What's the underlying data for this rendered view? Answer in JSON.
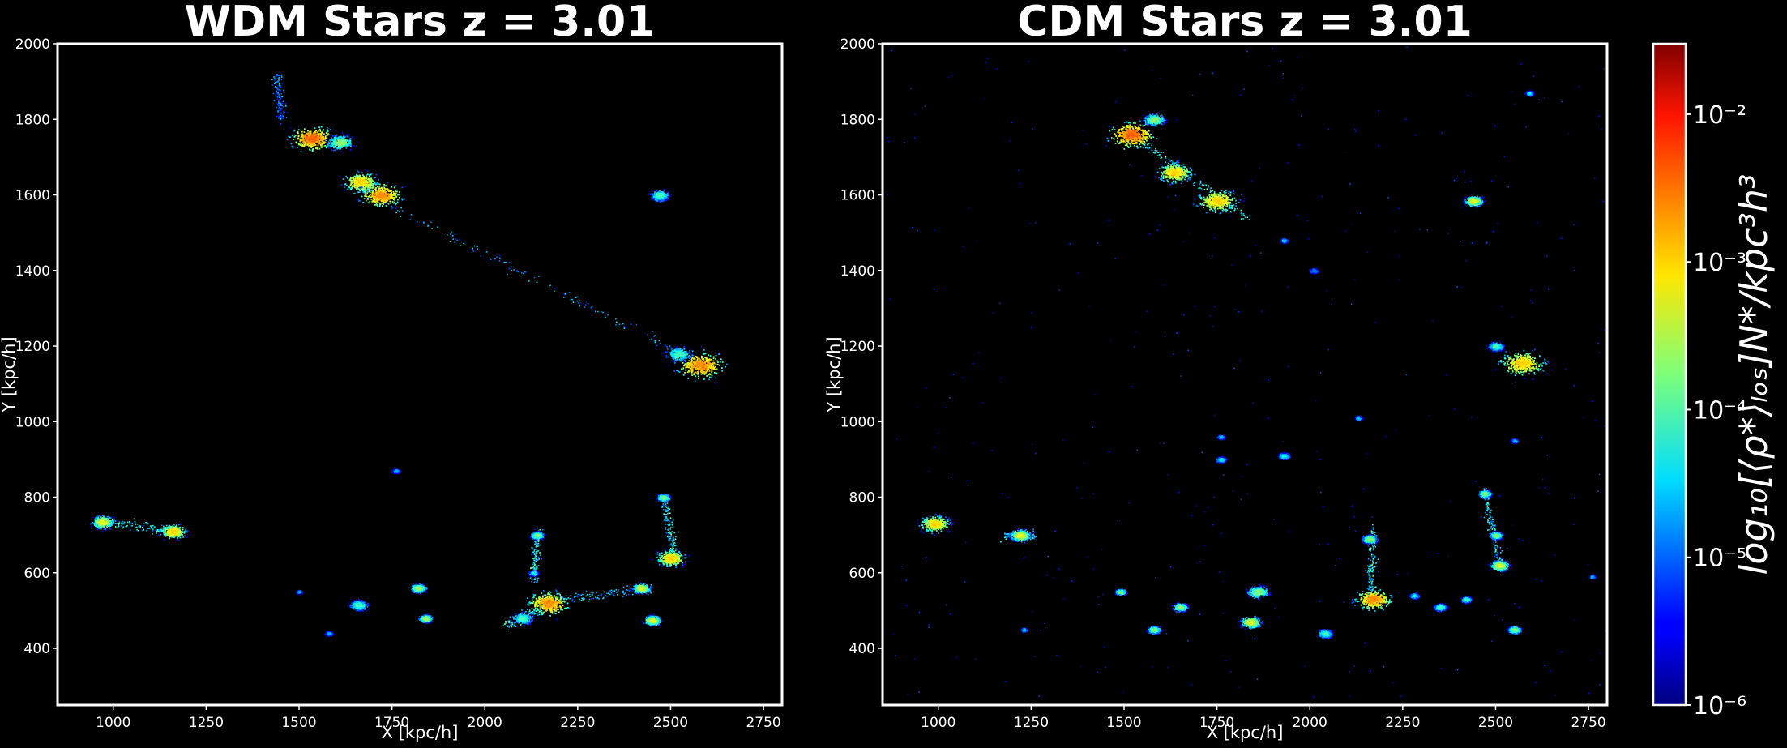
{
  "chart_data": [
    {
      "type": "heatmap",
      "title": "WDM Stars z = 3.01",
      "xlabel": "X [kpc/h]",
      "ylabel": "Y [kpc/h]",
      "xlim": [
        850,
        2800
      ],
      "ylim": [
        250,
        2000
      ],
      "xticks": [
        "1000",
        "1250",
        "1500",
        "1750",
        "2000",
        "2250",
        "2500",
        "2750"
      ],
      "yticks": [
        "400",
        "600",
        "800",
        "1000",
        "1200",
        "1400",
        "1600",
        "1800",
        "2000"
      ],
      "colormap": "jet",
      "background": "#000000",
      "blobs": [
        {
          "x": 1535,
          "y": 1750,
          "peak": 0.003,
          "spread": 35
        },
        {
          "x": 1610,
          "y": 1740,
          "peak": 0.0002,
          "spread": 25
        },
        {
          "x": 1665,
          "y": 1635,
          "peak": 0.001,
          "spread": 30
        },
        {
          "x": 1720,
          "y": 1600,
          "peak": 0.002,
          "spread": 35
        },
        {
          "x": 2470,
          "y": 1595,
          "peak": 0.0003,
          "spread": 12
        },
        {
          "x": 2580,
          "y": 1150,
          "peak": 0.002,
          "spread": 40
        },
        {
          "x": 2520,
          "y": 1180,
          "peak": 0.0001,
          "spread": 25
        },
        {
          "x": 970,
          "y": 735,
          "peak": 0.0005,
          "spread": 20
        },
        {
          "x": 1160,
          "y": 710,
          "peak": 0.001,
          "spread": 22
        },
        {
          "x": 1760,
          "y": 870,
          "peak": 3e-05,
          "spread": 8
        },
        {
          "x": 2140,
          "y": 700,
          "peak": 0.0002,
          "spread": 12
        },
        {
          "x": 2130,
          "y": 600,
          "peak": 5e-05,
          "spread": 10
        },
        {
          "x": 2170,
          "y": 520,
          "peak": 0.002,
          "spread": 35
        },
        {
          "x": 2100,
          "y": 480,
          "peak": 0.0001,
          "spread": 20
        },
        {
          "x": 2480,
          "y": 800,
          "peak": 0.0002,
          "spread": 12
        },
        {
          "x": 2500,
          "y": 640,
          "peak": 0.001,
          "spread": 25
        },
        {
          "x": 2420,
          "y": 560,
          "peak": 0.0005,
          "spread": 15
        },
        {
          "x": 2450,
          "y": 475,
          "peak": 0.0005,
          "spread": 15
        },
        {
          "x": 1820,
          "y": 560,
          "peak": 0.0003,
          "spread": 14
        },
        {
          "x": 1840,
          "y": 480,
          "peak": 0.0003,
          "spread": 12
        },
        {
          "x": 1660,
          "y": 515,
          "peak": 0.0001,
          "spread": 18
        },
        {
          "x": 1580,
          "y": 440,
          "peak": 3e-05,
          "spread": 8
        },
        {
          "x": 1500,
          "y": 550,
          "peak": 3e-05,
          "spread": 6
        },
        {
          "x": 2470,
          "y": 1600,
          "peak": 0.0001,
          "spread": 18
        }
      ],
      "filaments": [
        {
          "from": [
            1650,
            1620
          ],
          "to": [
            2550,
            1170
          ],
          "peak": 2e-05
        },
        {
          "from": [
            960,
            740
          ],
          "to": [
            1180,
            705
          ],
          "peak": 4e-05
        },
        {
          "from": [
            2150,
            525
          ],
          "to": [
            2450,
            560
          ],
          "peak": 2e-05
        },
        {
          "from": [
            2480,
            800
          ],
          "to": [
            2510,
            640
          ],
          "peak": 4e-05
        },
        {
          "from": [
            1440,
            1920
          ],
          "to": [
            1450,
            1800
          ],
          "peak": 1e-05
        },
        {
          "from": [
            2050,
            460
          ],
          "to": [
            2170,
            520
          ],
          "peak": 4e-05
        },
        {
          "from": [
            2140,
            720
          ],
          "to": [
            2130,
            580
          ],
          "peak": 4e-05
        }
      ]
    },
    {
      "type": "heatmap",
      "title": "CDM Stars z = 3.01",
      "xlabel": "X [kpc/h]",
      "ylabel": "Y [kpc/h]",
      "xlim": [
        850,
        2800
      ],
      "ylim": [
        250,
        2000
      ],
      "xticks": [
        "1000",
        "1250",
        "1500",
        "1750",
        "2000",
        "2250",
        "2500",
        "2750"
      ],
      "yticks": [
        "400",
        "600",
        "800",
        "1000",
        "1200",
        "1400",
        "1600",
        "1800",
        "2000"
      ],
      "colormap": "jet",
      "background": "#000000",
      "blobs": [
        {
          "x": 1520,
          "y": 1760,
          "peak": 0.003,
          "spread": 38
        },
        {
          "x": 1580,
          "y": 1800,
          "peak": 0.0002,
          "spread": 20
        },
        {
          "x": 1635,
          "y": 1660,
          "peak": 0.001,
          "spread": 30
        },
        {
          "x": 1750,
          "y": 1585,
          "peak": 0.001,
          "spread": 35
        },
        {
          "x": 2440,
          "y": 1585,
          "peak": 0.0005,
          "spread": 16
        },
        {
          "x": 2590,
          "y": 1870,
          "peak": 5e-05,
          "spread": 8
        },
        {
          "x": 2570,
          "y": 1155,
          "peak": 0.001,
          "spread": 40
        },
        {
          "x": 2500,
          "y": 1200,
          "peak": 0.0001,
          "spread": 15
        },
        {
          "x": 990,
          "y": 730,
          "peak": 0.001,
          "spread": 25
        },
        {
          "x": 1220,
          "y": 700,
          "peak": 0.0005,
          "spread": 18
        },
        {
          "x": 1760,
          "y": 960,
          "peak": 3e-05,
          "spread": 8
        },
        {
          "x": 1760,
          "y": 900,
          "peak": 5e-05,
          "spread": 10
        },
        {
          "x": 1930,
          "y": 910,
          "peak": 5e-05,
          "spread": 12
        },
        {
          "x": 2160,
          "y": 690,
          "peak": 0.0002,
          "spread": 14
        },
        {
          "x": 2170,
          "y": 530,
          "peak": 0.002,
          "spread": 30
        },
        {
          "x": 2040,
          "y": 440,
          "peak": 0.0001,
          "spread": 14
        },
        {
          "x": 2470,
          "y": 810,
          "peak": 0.0002,
          "spread": 12
        },
        {
          "x": 2500,
          "y": 700,
          "peak": 0.0002,
          "spread": 12
        },
        {
          "x": 2510,
          "y": 620,
          "peak": 0.0005,
          "spread": 16
        },
        {
          "x": 2550,
          "y": 950,
          "peak": 3e-05,
          "spread": 8
        },
        {
          "x": 2550,
          "y": 450,
          "peak": 0.0002,
          "spread": 12
        },
        {
          "x": 1840,
          "y": 470,
          "peak": 0.0005,
          "spread": 18
        },
        {
          "x": 1860,
          "y": 550,
          "peak": 0.0002,
          "spread": 20
        },
        {
          "x": 1650,
          "y": 510,
          "peak": 0.0002,
          "spread": 14
        },
        {
          "x": 1580,
          "y": 450,
          "peak": 0.0002,
          "spread": 12
        },
        {
          "x": 1490,
          "y": 550,
          "peak": 0.0002,
          "spread": 10
        },
        {
          "x": 2350,
          "y": 510,
          "peak": 0.0001,
          "spread": 12
        },
        {
          "x": 2420,
          "y": 530,
          "peak": 0.0001,
          "spread": 10
        },
        {
          "x": 2280,
          "y": 540,
          "peak": 5e-05,
          "spread": 10
        },
        {
          "x": 1230,
          "y": 450,
          "peak": 5e-05,
          "spread": 6
        },
        {
          "x": 2130,
          "y": 1010,
          "peak": 3e-05,
          "spread": 8
        },
        {
          "x": 2760,
          "y": 590,
          "peak": 3e-05,
          "spread": 6
        },
        {
          "x": 2010,
          "y": 1400,
          "peak": 2e-05,
          "spread": 10
        },
        {
          "x": 1930,
          "y": 1480,
          "peak": 3e-05,
          "spread": 8
        }
      ],
      "filaments": [
        {
          "from": [
            1520,
            1760
          ],
          "to": [
            1830,
            1540
          ],
          "peak": 5e-05
        },
        {
          "from": [
            1180,
            700
          ],
          "to": [
            1260,
            700
          ],
          "peak": 2e-05
        },
        {
          "from": [
            2470,
            820
          ],
          "to": [
            2510,
            620
          ],
          "peak": 3e-05
        },
        {
          "from": [
            2170,
            720
          ],
          "to": [
            2160,
            520
          ],
          "peak": 3e-05
        }
      ],
      "scatter_points": 420
    }
  ],
  "colorbar": {
    "label": "log₁₀[⟨ρ*⟩ₗₒₛ]N*/kpc³h³",
    "scale": "log",
    "range": [
      1e-06,
      0.03
    ],
    "ticks": [
      {
        "value": 1e-06,
        "label": "10⁻⁶"
      },
      {
        "value": 1e-05,
        "label": "10⁻⁵"
      },
      {
        "value": 0.0001,
        "label": "10⁻⁴"
      },
      {
        "value": 0.001,
        "label": "10⁻³"
      },
      {
        "value": 0.01,
        "label": "10⁻²"
      }
    ]
  }
}
